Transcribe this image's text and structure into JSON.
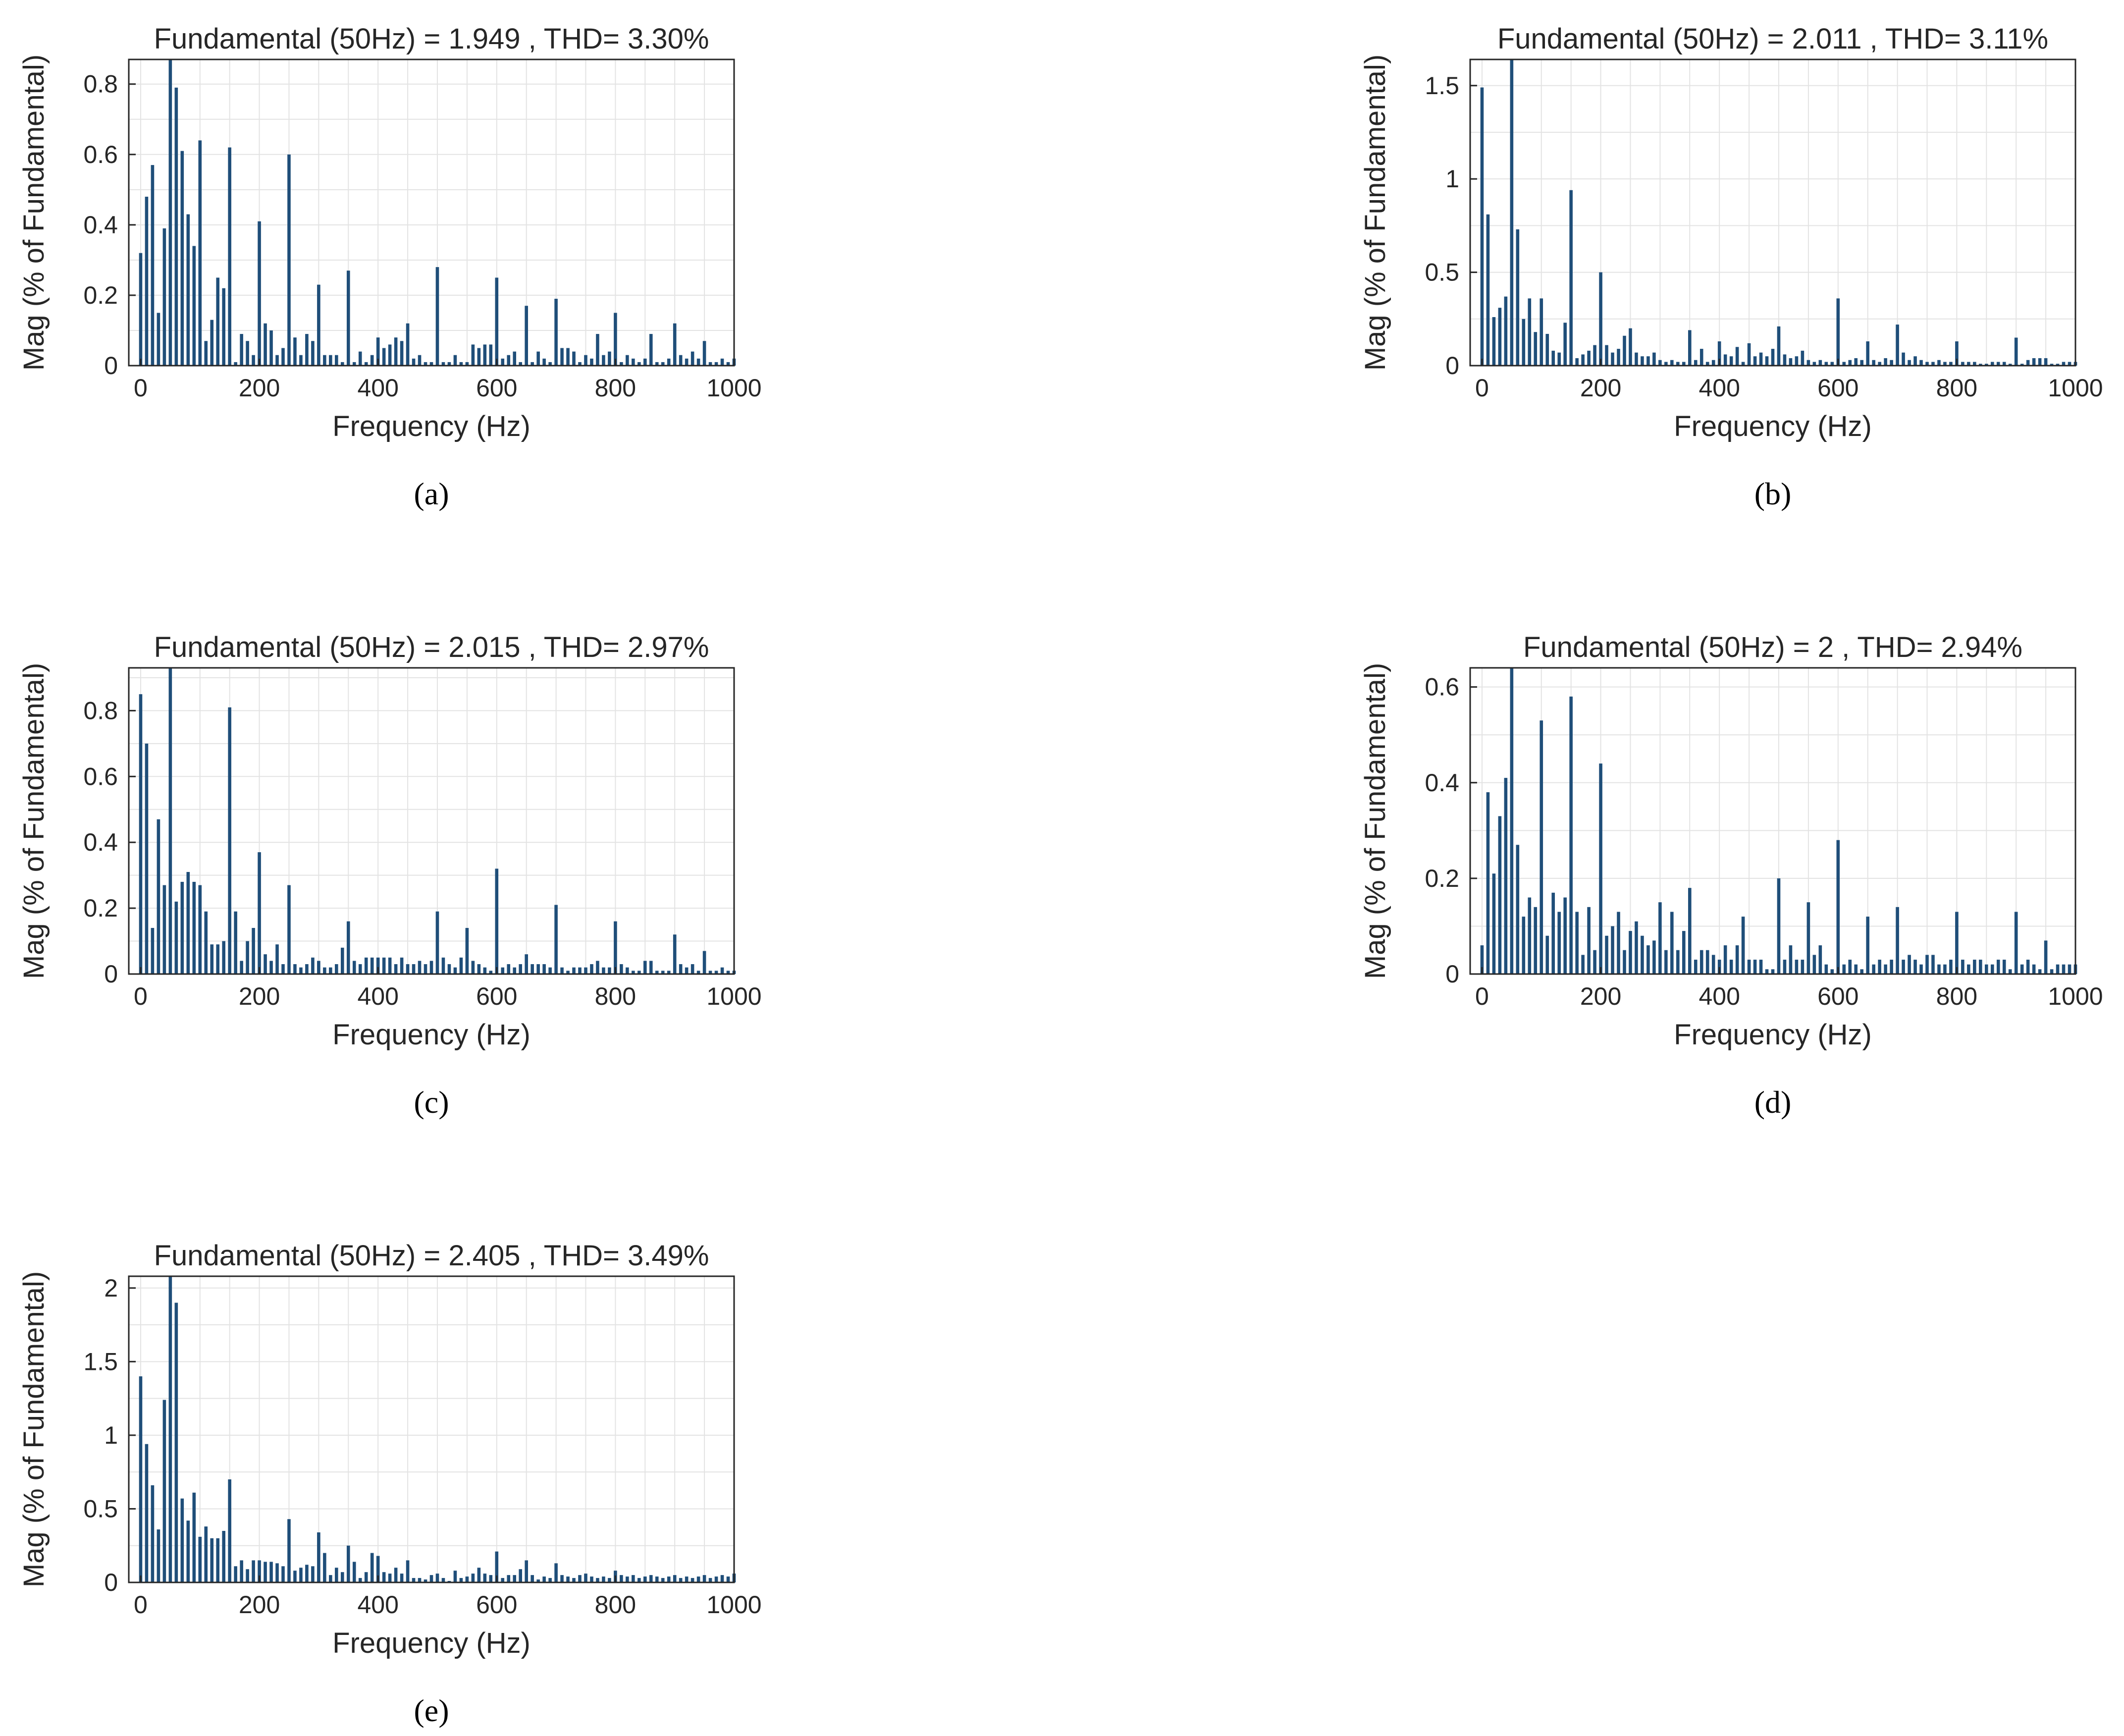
{
  "figure": {
    "colors": {
      "bar": "#1f4e79",
      "grid": "#e3e3e3",
      "axis": "#262626",
      "text": "#262626"
    }
  },
  "chart_data": [
    {
      "id": "a",
      "type": "bar",
      "caption": "(a)",
      "title": "Fundamental (50Hz) = 1.949 , THD= 3.30%",
      "xlabel": "Frequency (Hz)",
      "ylabel": "Mag (% of Fundamental)",
      "xlim": [
        -20,
        1000
      ],
      "ylim": [
        0,
        0.87
      ],
      "xticks": [
        0,
        200,
        400,
        600,
        800,
        1000
      ],
      "ytick_values": [
        0,
        0.2,
        0.4,
        0.6,
        0.8
      ],
      "ytick_labels": [
        "0",
        "0.2",
        "0.4",
        "0.6",
        "0.8"
      ],
      "grid": true,
      "bar_step_hz": 10,
      "values": [
        0.32,
        0.48,
        0.57,
        0.15,
        0.39,
        0.87,
        0.79,
        0.61,
        0.43,
        0.34,
        0.64,
        0.07,
        0.13,
        0.25,
        0.22,
        0.62,
        0.01,
        0.09,
        0.07,
        0.03,
        0.41,
        0.12,
        0.1,
        0.03,
        0.05,
        0.6,
        0.08,
        0.03,
        0.09,
        0.07,
        0.23,
        0.03,
        0.03,
        0.03,
        0.01,
        0.27,
        0.01,
        0.04,
        0.01,
        0.03,
        0.08,
        0.05,
        0.06,
        0.08,
        0.07,
        0.12,
        0.02,
        0.03,
        0.01,
        0.01,
        0.28,
        0.01,
        0.01,
        0.03,
        0.01,
        0.01,
        0.06,
        0.05,
        0.06,
        0.06,
        0.25,
        0.02,
        0.03,
        0.04,
        0.01,
        0.17,
        0.01,
        0.04,
        0.02,
        0.01,
        0.19,
        0.05,
        0.05,
        0.04,
        0.01,
        0.03,
        0.02,
        0.09,
        0.03,
        0.04,
        0.15,
        0.01,
        0.03,
        0.02,
        0.01,
        0.02,
        0.09,
        0.01,
        0.01,
        0.02,
        0.12,
        0.03,
        0.02,
        0.04,
        0.02,
        0.07,
        0.01,
        0.01,
        0.02,
        0.01,
        0.02
      ]
    },
    {
      "id": "b",
      "type": "bar",
      "caption": "(b)",
      "title": "Fundamental (50Hz) = 2.011 , THD= 3.11%",
      "xlabel": "Frequency (Hz)",
      "ylabel": "Mag (% of Fundamental)",
      "xlim": [
        -20,
        1000
      ],
      "ylim": [
        0,
        1.64
      ],
      "xticks": [
        0,
        200,
        400,
        600,
        800,
        1000
      ],
      "ytick_values": [
        0,
        0.5,
        1,
        1.5
      ],
      "ytick_labels": [
        "0",
        "0.5",
        "1",
        "1.5"
      ],
      "grid": true,
      "bar_step_hz": 10,
      "values": [
        1.49,
        0.81,
        0.26,
        0.31,
        0.37,
        1.64,
        0.73,
        0.25,
        0.36,
        0.18,
        0.36,
        0.17,
        0.08,
        0.07,
        0.23,
        0.94,
        0.04,
        0.06,
        0.08,
        0.11,
        0.5,
        0.11,
        0.07,
        0.09,
        0.16,
        0.2,
        0.07,
        0.05,
        0.05,
        0.07,
        0.03,
        0.02,
        0.03,
        0.02,
        0.02,
        0.19,
        0.03,
        0.09,
        0.02,
        0.03,
        0.13,
        0.06,
        0.05,
        0.1,
        0.02,
        0.12,
        0.05,
        0.07,
        0.05,
        0.09,
        0.21,
        0.06,
        0.04,
        0.05,
        0.08,
        0.03,
        0.02,
        0.03,
        0.02,
        0.02,
        0.36,
        0.02,
        0.03,
        0.04,
        0.03,
        0.13,
        0.03,
        0.02,
        0.04,
        0.03,
        0.22,
        0.07,
        0.03,
        0.05,
        0.03,
        0.02,
        0.02,
        0.03,
        0.02,
        0.02,
        0.13,
        0.02,
        0.02,
        0.02,
        0.01,
        0.01,
        0.02,
        0.02,
        0.02,
        0.01,
        0.15,
        0.01,
        0.03,
        0.04,
        0.04,
        0.04,
        0.01,
        0.01,
        0.02,
        0.02,
        0.02
      ]
    },
    {
      "id": "c",
      "type": "bar",
      "caption": "(c)",
      "title": "Fundamental (50Hz) = 2.015 , THD= 2.97%",
      "xlabel": "Frequency (Hz)",
      "ylabel": "Mag (% of Fundamental)",
      "xlim": [
        -20,
        1000
      ],
      "ylim": [
        0,
        0.93
      ],
      "xticks": [
        0,
        200,
        400,
        600,
        800,
        1000
      ],
      "ytick_values": [
        0,
        0.2,
        0.4,
        0.6,
        0.8
      ],
      "ytick_labels": [
        "0",
        "0.2",
        "0.4",
        "0.6",
        "0.8"
      ],
      "grid": true,
      "bar_step_hz": 10,
      "values": [
        0.85,
        0.7,
        0.14,
        0.47,
        0.27,
        0.93,
        0.22,
        0.28,
        0.31,
        0.28,
        0.27,
        0.19,
        0.09,
        0.09,
        0.1,
        0.81,
        0.19,
        0.04,
        0.1,
        0.14,
        0.37,
        0.06,
        0.04,
        0.09,
        0.03,
        0.27,
        0.03,
        0.02,
        0.03,
        0.05,
        0.04,
        0.02,
        0.02,
        0.03,
        0.08,
        0.16,
        0.04,
        0.03,
        0.05,
        0.05,
        0.05,
        0.05,
        0.05,
        0.03,
        0.05,
        0.03,
        0.03,
        0.04,
        0.03,
        0.04,
        0.19,
        0.05,
        0.03,
        0.02,
        0.05,
        0.14,
        0.04,
        0.03,
        0.02,
        0.01,
        0.32,
        0.02,
        0.03,
        0.02,
        0.03,
        0.06,
        0.03,
        0.03,
        0.03,
        0.02,
        0.21,
        0.02,
        0.01,
        0.02,
        0.02,
        0.02,
        0.03,
        0.04,
        0.02,
        0.02,
        0.16,
        0.03,
        0.02,
        0.01,
        0.01,
        0.04,
        0.04,
        0.01,
        0.01,
        0.01,
        0.12,
        0.03,
        0.02,
        0.03,
        0.01,
        0.07,
        0.01,
        0.01,
        0.02,
        0.01,
        0.01
      ]
    },
    {
      "id": "d",
      "type": "bar",
      "caption": "(d)",
      "title": "Fundamental (50Hz) = 2 , THD= 2.94%",
      "xlabel": "Frequency (Hz)",
      "ylabel": "Mag (% of Fundamental)",
      "xlim": [
        -20,
        1000
      ],
      "ylim": [
        0,
        0.64
      ],
      "xticks": [
        0,
        200,
        400,
        600,
        800,
        1000
      ],
      "ytick_values": [
        0,
        0.2,
        0.4,
        0.6
      ],
      "ytick_labels": [
        "0",
        "0.2",
        "0.4",
        "0.6"
      ],
      "grid": true,
      "bar_step_hz": 10,
      "values": [
        0.06,
        0.38,
        0.21,
        0.33,
        0.41,
        0.64,
        0.27,
        0.12,
        0.16,
        0.14,
        0.53,
        0.08,
        0.17,
        0.13,
        0.16,
        0.58,
        0.13,
        0.04,
        0.14,
        0.05,
        0.44,
        0.08,
        0.1,
        0.13,
        0.05,
        0.09,
        0.11,
        0.08,
        0.06,
        0.07,
        0.15,
        0.05,
        0.13,
        0.05,
        0.09,
        0.18,
        0.03,
        0.05,
        0.05,
        0.04,
        0.03,
        0.06,
        0.03,
        0.06,
        0.12,
        0.03,
        0.03,
        0.03,
        0.01,
        0.01,
        0.2,
        0.03,
        0.06,
        0.03,
        0.03,
        0.15,
        0.04,
        0.06,
        0.02,
        0.01,
        0.28,
        0.02,
        0.03,
        0.02,
        0.01,
        0.12,
        0.02,
        0.03,
        0.02,
        0.03,
        0.14,
        0.03,
        0.04,
        0.03,
        0.02,
        0.04,
        0.04,
        0.02,
        0.02,
        0.03,
        0.13,
        0.03,
        0.02,
        0.03,
        0.03,
        0.02,
        0.02,
        0.03,
        0.03,
        0.01,
        0.13,
        0.02,
        0.03,
        0.02,
        0.01,
        0.07,
        0.01,
        0.02,
        0.02,
        0.02,
        0.02
      ]
    },
    {
      "id": "e",
      "type": "bar",
      "caption": "(e)",
      "title": "Fundamental (50Hz) = 2.405 , THD= 3.49%",
      "xlabel": "Frequency (Hz)",
      "ylabel": "Mag (% of Fundamental)",
      "xlim": [
        -20,
        1000
      ],
      "ylim": [
        0,
        2.08
      ],
      "xticks": [
        0,
        200,
        400,
        600,
        800,
        1000
      ],
      "ytick_values": [
        0,
        0.5,
        1,
        1.5,
        2
      ],
      "ytick_labels": [
        "0",
        "0.5",
        "1",
        "1.5",
        "2"
      ],
      "grid": true,
      "bar_step_hz": 10,
      "values": [
        1.4,
        0.94,
        0.66,
        0.36,
        1.24,
        2.08,
        1.9,
        0.57,
        0.42,
        0.61,
        0.31,
        0.38,
        0.3,
        0.3,
        0.35,
        0.7,
        0.11,
        0.15,
        0.09,
        0.15,
        0.15,
        0.14,
        0.14,
        0.13,
        0.11,
        0.43,
        0.08,
        0.1,
        0.12,
        0.11,
        0.34,
        0.2,
        0.05,
        0.1,
        0.07,
        0.25,
        0.14,
        0.03,
        0.07,
        0.2,
        0.18,
        0.07,
        0.06,
        0.1,
        0.06,
        0.15,
        0.03,
        0.03,
        0.02,
        0.05,
        0.06,
        0.03,
        0.01,
        0.08,
        0.03,
        0.04,
        0.06,
        0.1,
        0.06,
        0.05,
        0.21,
        0.03,
        0.05,
        0.05,
        0.09,
        0.15,
        0.05,
        0.02,
        0.04,
        0.03,
        0.13,
        0.05,
        0.04,
        0.03,
        0.05,
        0.06,
        0.04,
        0.03,
        0.04,
        0.03,
        0.08,
        0.05,
        0.04,
        0.05,
        0.03,
        0.04,
        0.05,
        0.04,
        0.03,
        0.04,
        0.05,
        0.03,
        0.04,
        0.03,
        0.04,
        0.05,
        0.03,
        0.04,
        0.05,
        0.04,
        0.06
      ]
    }
  ]
}
